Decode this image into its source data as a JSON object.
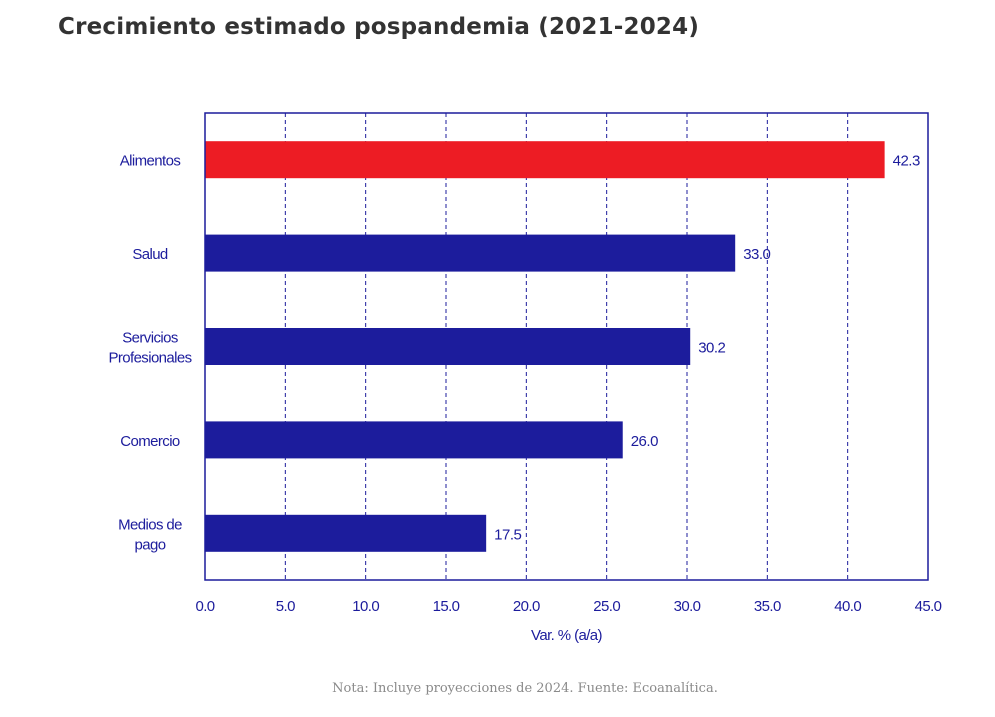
{
  "header": {
    "title": "Crecimiento estimado pospandemia (2021-2024)"
  },
  "footer": {
    "note": "Nota: Incluye proyecciones de 2024. Fuente: Ecoanalítica."
  },
  "colors": {
    "highlight": "#ed1c24",
    "bar": "#1c1c9c",
    "axis": "#1c1c9c",
    "grid": "#1c1c9c",
    "text": "#1c1c9c"
  },
  "chart_data": {
    "type": "bar",
    "orientation": "horizontal",
    "title": "",
    "xlabel": "Var. % (a/a)",
    "ylabel": "",
    "xlim": [
      0,
      45
    ],
    "xticks": [
      0,
      5,
      10,
      15,
      20,
      25,
      30,
      35,
      40,
      45
    ],
    "xtick_labels": [
      "0.0",
      "5.0",
      "10.0",
      "15.0",
      "20.0",
      "25.0",
      "30.0",
      "35.0",
      "40.0",
      "45.0"
    ],
    "grid": "vertical dashed",
    "categories": [
      [
        "Alimentos"
      ],
      [
        "Salud"
      ],
      [
        "Servicios",
        "Profesionales"
      ],
      [
        "Comercio"
      ],
      [
        "Medios de",
        "pago"
      ]
    ],
    "values": [
      42.3,
      33.0,
      30.2,
      26.0,
      17.5
    ],
    "value_labels": [
      "42.3",
      "33.0",
      "30.2",
      "26.0",
      "17.5"
    ],
    "highlighted": [
      true,
      false,
      false,
      false,
      false
    ]
  }
}
